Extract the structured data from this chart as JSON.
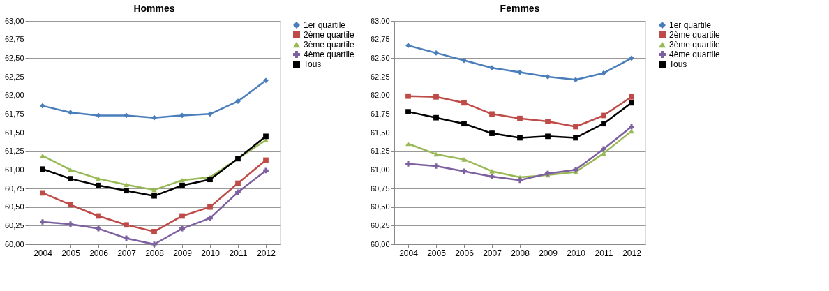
{
  "chart_data": [
    {
      "type": "line",
      "title": "Hommes",
      "categories": [
        "2004",
        "2005",
        "2006",
        "2007",
        "2008",
        "2009",
        "2010",
        "2011",
        "2012"
      ],
      "ylim": [
        60,
        63
      ],
      "yticks": [
        {
          "value": 60,
          "label": "60,00"
        },
        {
          "value": 60.25,
          "label": "60,25"
        },
        {
          "value": 60.5,
          "label": "60,50"
        },
        {
          "value": 60.75,
          "label": "60,75"
        },
        {
          "value": 61,
          "label": "61,00"
        },
        {
          "value": 61.25,
          "label": "61,25"
        },
        {
          "value": 61.5,
          "label": "61,50"
        },
        {
          "value": 61.75,
          "label": "61,75"
        },
        {
          "value": 62,
          "label": "62,00"
        },
        {
          "value": 62.25,
          "label": "62,25"
        },
        {
          "value": 62.5,
          "label": "62,50"
        },
        {
          "value": 62.75,
          "label": "62,75"
        },
        {
          "value": 63,
          "label": "63,00"
        }
      ],
      "grid": "y",
      "legend": "right",
      "line_style": "solid",
      "series": [
        {
          "name": "1er quartile",
          "color": "#4a7ebb",
          "marker": "diamond",
          "values": [
            61.86,
            61.77,
            61.73,
            61.73,
            61.7,
            61.73,
            61.75,
            61.92,
            62.2
          ]
        },
        {
          "name": "2ème quartile",
          "color": "#be4b48",
          "marker": "square",
          "values": [
            60.69,
            60.53,
            60.38,
            60.26,
            60.17,
            60.38,
            60.5,
            60.82,
            61.13
          ]
        },
        {
          "name": "3ème quartile",
          "color": "#98b954",
          "marker": "triangle",
          "values": [
            61.19,
            61.0,
            60.88,
            60.8,
            60.73,
            60.86,
            60.9,
            61.15,
            61.4
          ]
        },
        {
          "name": "4ème quartile",
          "color": "#7d60a0",
          "marker": "cross",
          "values": [
            60.3,
            60.27,
            60.21,
            60.08,
            60.0,
            60.21,
            60.35,
            60.7,
            60.99
          ]
        },
        {
          "name": "Tous",
          "color": "#000000",
          "marker": "square",
          "values": [
            61.01,
            60.88,
            60.79,
            60.72,
            60.65,
            60.79,
            60.87,
            61.15,
            61.45
          ]
        }
      ]
    },
    {
      "type": "line",
      "title": "Femmes",
      "categories": [
        "2004",
        "2005",
        "2006",
        "2007",
        "2008",
        "2009",
        "2010",
        "2011",
        "2012"
      ],
      "ylim": [
        60,
        63
      ],
      "yticks": [
        {
          "value": 60,
          "label": "60,00"
        },
        {
          "value": 60.25,
          "label": "60,25"
        },
        {
          "value": 60.5,
          "label": "60,50"
        },
        {
          "value": 60.75,
          "label": "60,75"
        },
        {
          "value": 61,
          "label": "61,00"
        },
        {
          "value": 61.25,
          "label": "61,25"
        },
        {
          "value": 61.5,
          "label": "61,50"
        },
        {
          "value": 61.75,
          "label": "61,75"
        },
        {
          "value": 62,
          "label": "62,00"
        },
        {
          "value": 62.25,
          "label": "62,25"
        },
        {
          "value": 62.5,
          "label": "62,50"
        },
        {
          "value": 62.75,
          "label": "62,75"
        },
        {
          "value": 63,
          "label": "63,00"
        }
      ],
      "grid": "y",
      "legend": "right",
      "line_style": "solid",
      "series": [
        {
          "name": "1er quartile",
          "color": "#4a7ebb",
          "marker": "diamond",
          "values": [
            62.67,
            62.57,
            62.47,
            62.37,
            62.31,
            62.25,
            62.21,
            62.3,
            62.5
          ]
        },
        {
          "name": "2ème quartile",
          "color": "#be4b48",
          "marker": "square",
          "values": [
            61.99,
            61.98,
            61.9,
            61.75,
            61.69,
            61.65,
            61.58,
            61.73,
            61.98
          ]
        },
        {
          "name": "3ème quartile",
          "color": "#98b954",
          "marker": "triangle",
          "values": [
            61.35,
            61.21,
            61.14,
            60.98,
            60.9,
            60.93,
            60.97,
            61.22,
            61.52
          ]
        },
        {
          "name": "4ème quartile",
          "color": "#7d60a0",
          "marker": "cross",
          "values": [
            61.08,
            61.05,
            60.98,
            60.91,
            60.86,
            60.95,
            61.0,
            61.28,
            61.58
          ]
        },
        {
          "name": "Tous",
          "color": "#000000",
          "marker": "square",
          "values": [
            61.78,
            61.7,
            61.62,
            61.49,
            61.43,
            61.45,
            61.43,
            61.62,
            61.9
          ]
        }
      ]
    }
  ]
}
